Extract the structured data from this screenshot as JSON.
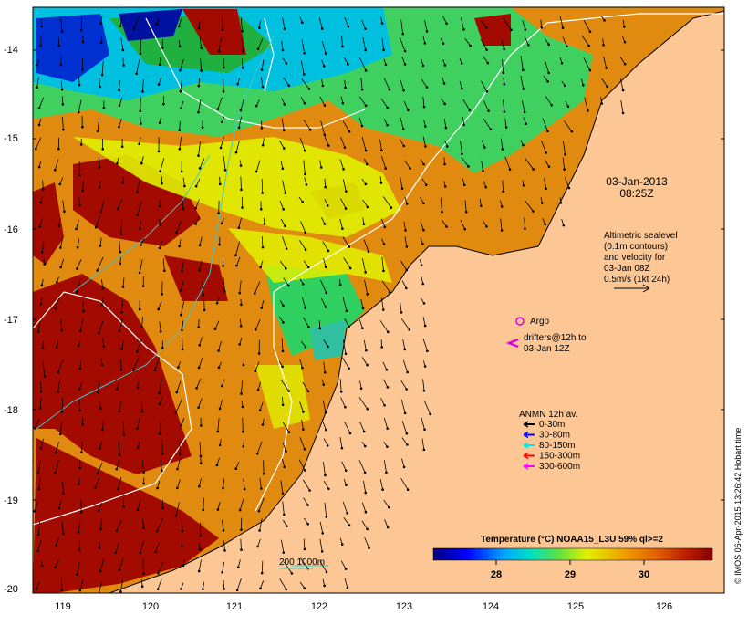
{
  "map": {
    "date_line1": "03-Jan-2013",
    "date_line2": "08:25Z",
    "altimetry": [
      "Altimetric sealevel",
      "(0.1m contours)",
      "and velocity for",
      "03-Jan 08Z",
      "0.5m/s (1kt 24h)"
    ],
    "argo_label": "Argo",
    "drifters_line1": "drifters@12h to",
    "drifters_line2": "03-Jan 12Z",
    "anmn_title": "ANMN 12h av.",
    "anmn_items": [
      {
        "label": "0-30m",
        "color": "#000000"
      },
      {
        "label": "30-80m",
        "color": "#0000ff"
      },
      {
        "label": "80-150m",
        "color": "#00e5e5"
      },
      {
        "label": "150-300m",
        "color": "#ff0000"
      },
      {
        "label": "300-600m",
        "color": "#ff00ff"
      }
    ],
    "depth_label": "200  1000m",
    "colorbar_title": "Temperature (°C) NOAA15_L3U 59% ql>=2",
    "colorbar_ticks": [
      "28",
      "29",
      "30"
    ],
    "lon_ticks": [
      "119",
      "120",
      "121",
      "122",
      "123",
      "124",
      "125",
      "126"
    ],
    "lat_ticks": [
      "-14",
      "-15",
      "-16",
      "-17",
      "-18",
      "-19",
      "-20"
    ],
    "credit": "© IMOS 06-Apr-2015 13:26:42 Hobart time",
    "colors": {
      "land": "#fcc794",
      "sst_warm": "#e8890f",
      "sst_hot": "#a30b00",
      "contour": "#ffffff",
      "isobath": "#3cc8c8"
    }
  }
}
